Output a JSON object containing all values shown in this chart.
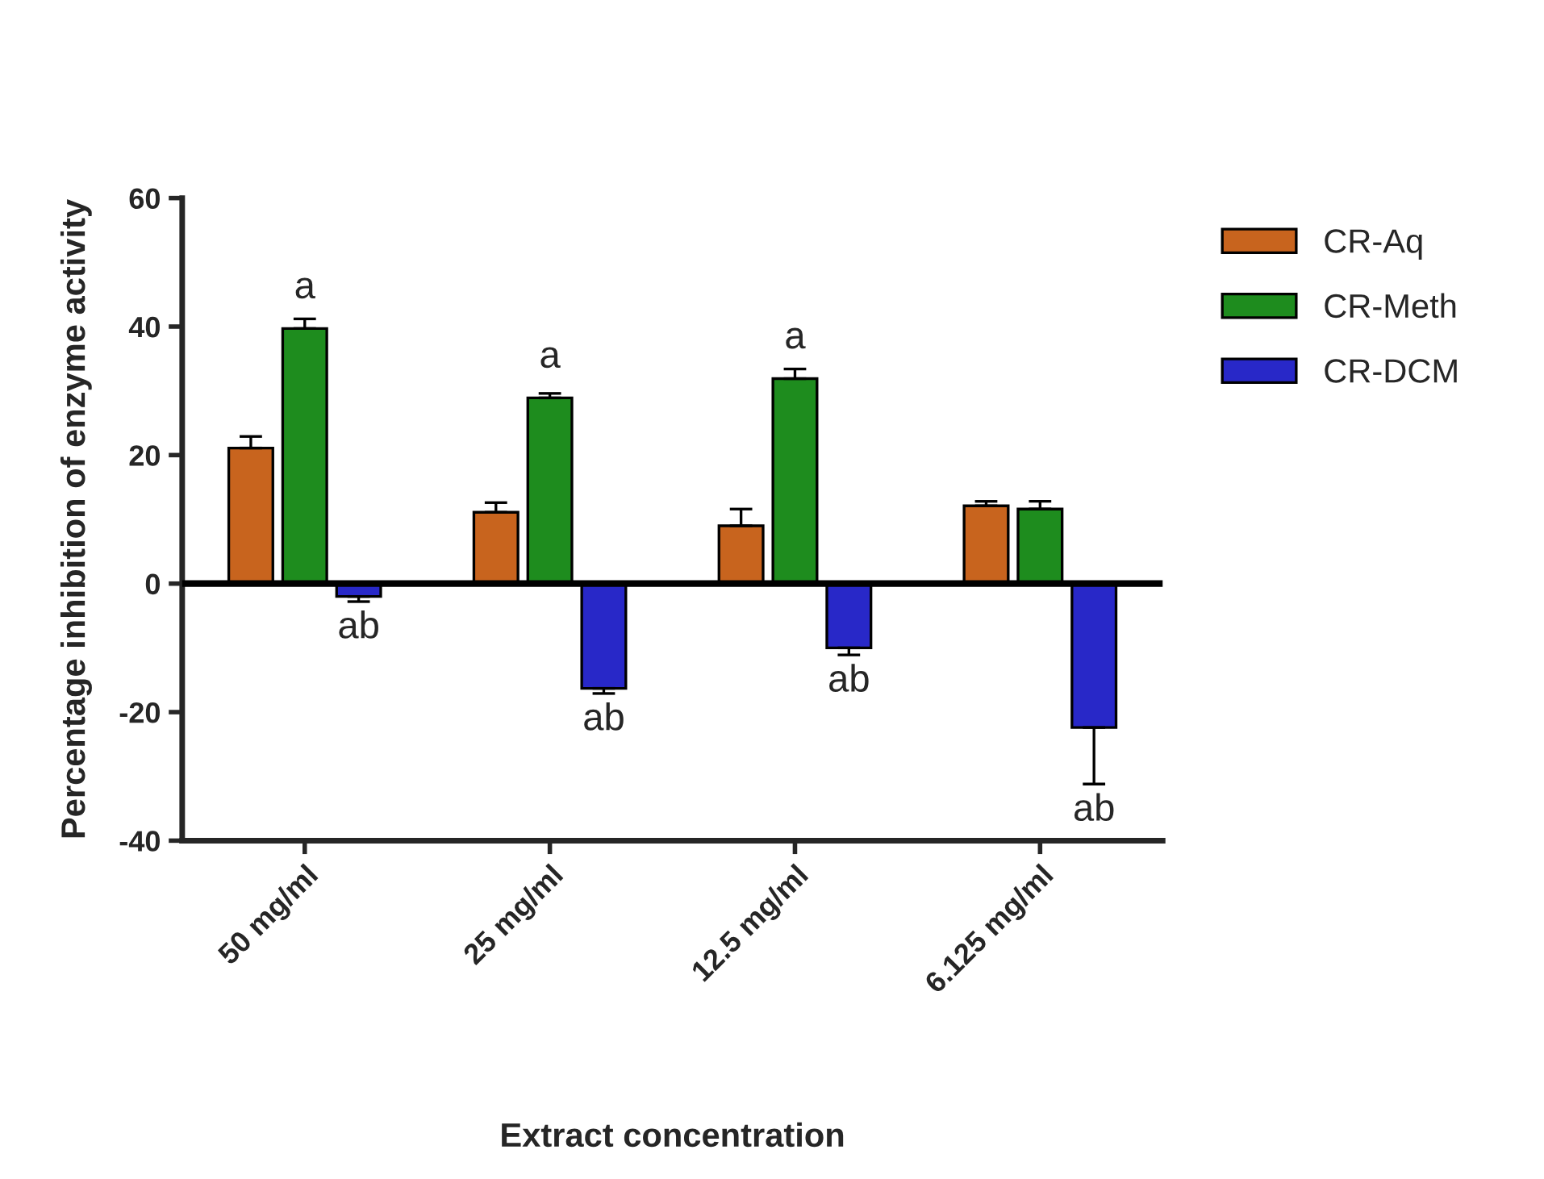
{
  "chart_data": {
    "type": "bar",
    "xlabel": "Extract concentration",
    "ylabel": "Percentage inhibition of enzyme activity",
    "categories": [
      "50 mg/ml",
      "25 mg/ml",
      "12.5 mg/ml",
      "6.125 mg/ml"
    ],
    "series": [
      {
        "name": "CR-Aq",
        "color": "#c8641e",
        "values": [
          21.1,
          11.1,
          9.0,
          12.1
        ],
        "errors": [
          [
            21.1,
            22.9
          ],
          [
            11.1,
            12.6
          ],
          [
            9.0,
            11.6
          ],
          [
            12.1,
            12.8
          ]
        ]
      },
      {
        "name": "CR-Meth",
        "color": "#1e8c1e",
        "values": [
          39.7,
          28.9,
          31.9,
          11.6
        ],
        "errors": [
          [
            39.7,
            41.2
          ],
          [
            28.9,
            29.6
          ],
          [
            31.9,
            33.4
          ],
          [
            11.6,
            12.8
          ]
        ]
      },
      {
        "name": "CR-DCM",
        "color": "#2828c8",
        "values": [
          -2.0,
          -16.3,
          -10.0,
          -22.4
        ],
        "errors": [
          [
            -2.8,
            -2.0
          ],
          [
            -17.1,
            -16.3
          ],
          [
            -11.1,
            -10.0
          ],
          [
            -31.2,
            -22.4
          ]
        ]
      }
    ],
    "ylim": [
      -40,
      60
    ],
    "yticks": [
      -40,
      -20,
      0,
      20,
      40,
      60
    ],
    "grid": false,
    "legend": "top right",
    "ref_lines": [
      {
        "axis": "y",
        "value": 0
      }
    ],
    "annotations": [
      {
        "text": "a",
        "x": "50 mg/ml",
        "y": 39.7
      },
      {
        "text": "a",
        "x": "25 mg/ml",
        "y": 28.9
      },
      {
        "text": "a",
        "x": "12.5 mg/ml",
        "y": 31.9
      },
      "ab",
      "ab",
      "ab",
      "ab"
    ]
  }
}
